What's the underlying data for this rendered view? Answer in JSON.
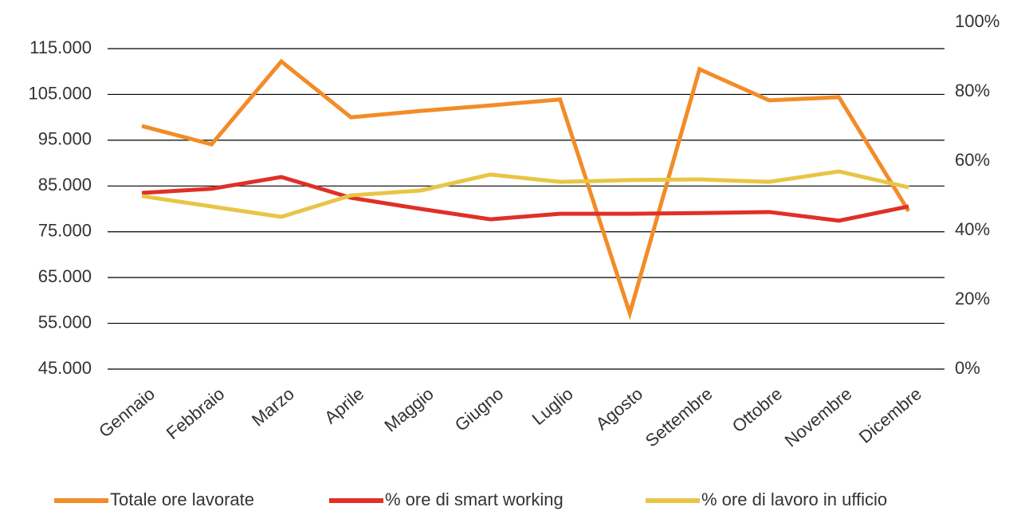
{
  "chart_data": {
    "type": "line",
    "categories": [
      "Gennaio",
      "Febbraio",
      "Marzo",
      "Aprile",
      "Maggio",
      "Giugno",
      "Luglio",
      "Agosto",
      "Settembre",
      "Ottobre",
      "Novembre",
      "Dicembre"
    ],
    "series": [
      {
        "name": "Totale ore lavorate",
        "color": "#f28c28",
        "values": [
          98100,
          94100,
          112200,
          100000,
          101400,
          102600,
          103900,
          57200,
          110500,
          103700,
          104400,
          79500
        ]
      },
      {
        "name": "% ore di smart working",
        "color": "#e03027",
        "axis": "y2",
        "values": [
          50.8,
          52,
          55.4,
          49.4,
          46.2,
          43.2,
          44.8,
          44.8,
          45,
          45.3,
          42.8,
          46.9
        ]
      },
      {
        "name": "% ore di lavoro in ufficio",
        "color": "#e8c547",
        "axis": "y2",
        "values": [
          49.9,
          46.9,
          43.9,
          50.1,
          51.5,
          56.1,
          54,
          54.5,
          54.7,
          54,
          57,
          52.4
        ]
      }
    ],
    "ylim": [
      45000,
      120750
    ],
    "yticks": [
      {
        "value": 45000,
        "label": "45.000"
      },
      {
        "value": 55000,
        "label": "55.000"
      },
      {
        "value": 65000,
        "label": "65.000"
      },
      {
        "value": 75000,
        "label": "75.000"
      },
      {
        "value": 85000,
        "label": "85.000"
      },
      {
        "value": 95000,
        "label": "95.000"
      },
      {
        "value": 105000,
        "label": "105.000"
      },
      {
        "value": 115000,
        "label": "115.000"
      }
    ],
    "y2lim": [
      0,
      100
    ],
    "y2ticks": [
      {
        "value": 0,
        "label": "0%"
      },
      {
        "value": 20,
        "label": "20%"
      },
      {
        "value": 40,
        "label": "40%"
      },
      {
        "value": 60,
        "label": "60%"
      },
      {
        "value": 80,
        "label": "80%"
      },
      {
        "value": 100,
        "label": "100%"
      }
    ],
    "grid": true,
    "legend": "bottom"
  }
}
